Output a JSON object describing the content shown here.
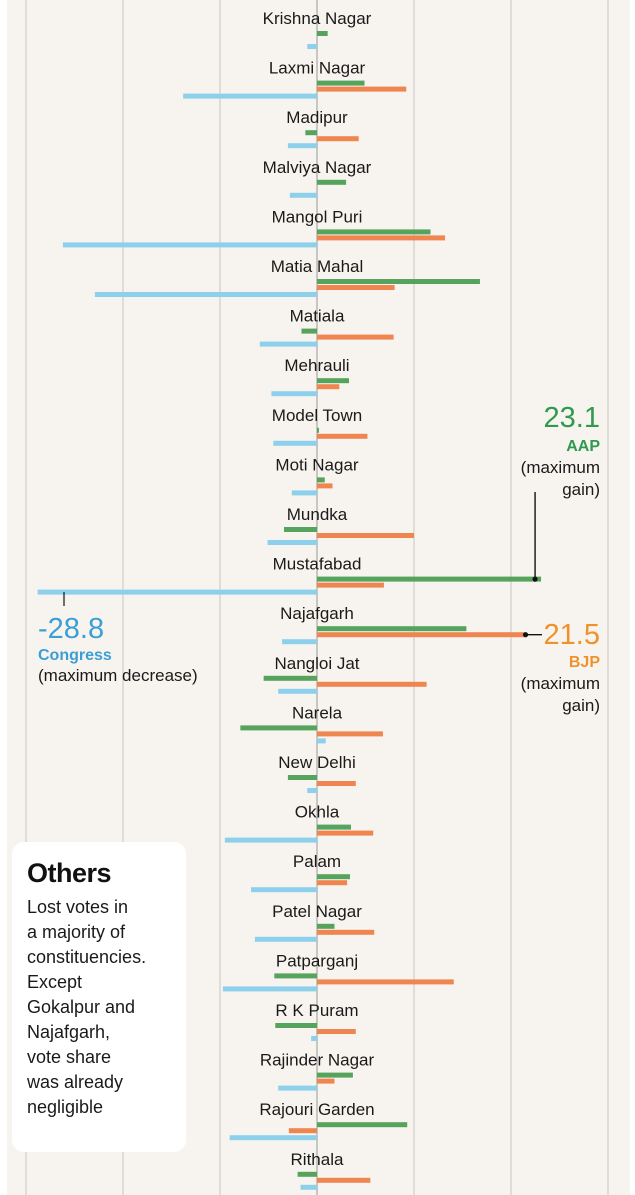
{
  "chart_data": {
    "type": "bar",
    "orientation": "horizontal",
    "xlim": [
      -30,
      30
    ],
    "grid": true,
    "colors": {
      "AAP": "#55a35c",
      "BJP": "#ef8650",
      "Congress": "#8dd0ec",
      "background": "#f7f4ef",
      "grid": "#c8c6c2"
    },
    "categories": [
      "Krishna Nagar",
      "Laxmi Nagar",
      "Madipur",
      "Malviya Nagar",
      "Mangol Puri",
      "Matia Mahal",
      "Matiala",
      "Mehrauli",
      "Model Town",
      "Moti Nagar",
      "Mundka",
      "Mustafabad",
      "Najafgarh",
      "Nangloi Jat",
      "Narela",
      "New Delhi",
      "Okhla",
      "Palam",
      "Patel Nagar",
      "Patparganj",
      "R K Puram",
      "Rajinder Nagar",
      "Rajouri Garden",
      "Rithala"
    ],
    "series": [
      {
        "name": "AAP",
        "values": [
          1.1,
          4.9,
          -1.2,
          3.0,
          11.7,
          16.8,
          -1.6,
          3.3,
          0.2,
          0.8,
          -3.4,
          23.1,
          15.4,
          -5.5,
          -7.9,
          -3.0,
          3.5,
          3.4,
          1.8,
          -4.4,
          -4.3,
          3.7,
          9.3,
          -2.0
        ]
      },
      {
        "name": "BJP",
        "values": [
          0.0,
          9.2,
          4.3,
          0.0,
          13.2,
          8.0,
          7.9,
          2.3,
          5.2,
          1.6,
          10.0,
          6.9,
          21.5,
          11.3,
          6.8,
          4.0,
          5.8,
          3.1,
          5.9,
          14.1,
          4.0,
          1.8,
          -2.9,
          5.5
        ]
      },
      {
        "name": "Congress",
        "values": [
          -1.0,
          -13.8,
          -3.0,
          -2.8,
          -26.2,
          -22.9,
          -5.9,
          -4.7,
          -4.5,
          -2.6,
          -5.1,
          -28.8,
          -3.6,
          -4.0,
          0.9,
          -1.0,
          -9.5,
          -6.8,
          -6.4,
          -9.7,
          -0.6,
          -4.0,
          -9.0,
          -1.7
        ]
      }
    ],
    "annotations": [
      {
        "series": "AAP",
        "category": "Mustafabad",
        "value": "23.1",
        "party": "AAP",
        "note": [
          "(maximum",
          "gain)"
        ]
      },
      {
        "series": "BJP",
        "category": "Najafgarh",
        "value": "21.5",
        "party": "BJP",
        "note": [
          "(maximum",
          "gain)"
        ]
      },
      {
        "series": "Congress",
        "category": "Mustafabad",
        "value": "-28.8",
        "party": "Congress",
        "note": [
          "(maximum decrease)"
        ]
      }
    ]
  },
  "others": {
    "title": "Others",
    "lines": [
      "Lost votes in",
      "a majority of",
      "constituencies.",
      "Except",
      "Gokalpur and",
      "Najafgarh,",
      "vote share",
      "was already",
      "negligible"
    ]
  }
}
